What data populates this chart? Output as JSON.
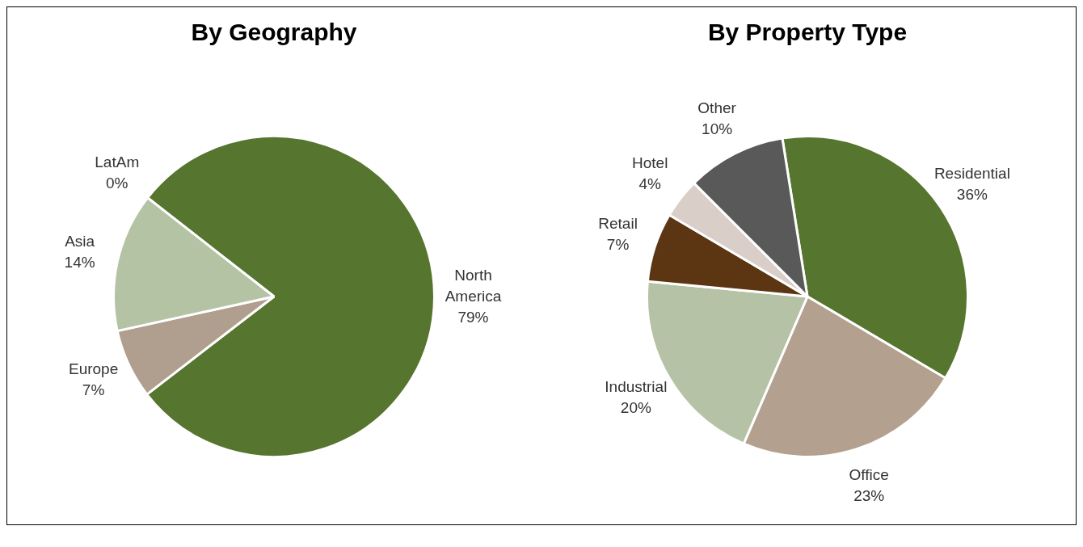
{
  "chart_data": [
    {
      "type": "pie",
      "title": "By Geography",
      "categories": [
        "North America",
        "Europe",
        "Asia",
        "LatAm"
      ],
      "values": [
        79,
        7,
        14,
        0
      ],
      "value_labels": [
        "79%",
        "7%",
        "14%",
        "0%"
      ],
      "colors": [
        "#56752f",
        "#b09e8e",
        "#b5c3a5",
        "#8aa06c"
      ],
      "legend": false
    },
    {
      "type": "pie",
      "title": "By Property Type",
      "categories": [
        "Residential",
        "Office",
        "Industrial",
        "Retail",
        "Hotel",
        "Other"
      ],
      "values": [
        36,
        23,
        20,
        7,
        4,
        10
      ],
      "value_labels": [
        "36%",
        "23%",
        "20%",
        "7%",
        "4%",
        "10%"
      ],
      "colors": [
        "#56752f",
        "#b3a08f",
        "#b5c2a6",
        "#5c3512",
        "#d9cfc8",
        "#595959"
      ],
      "legend": false
    }
  ]
}
